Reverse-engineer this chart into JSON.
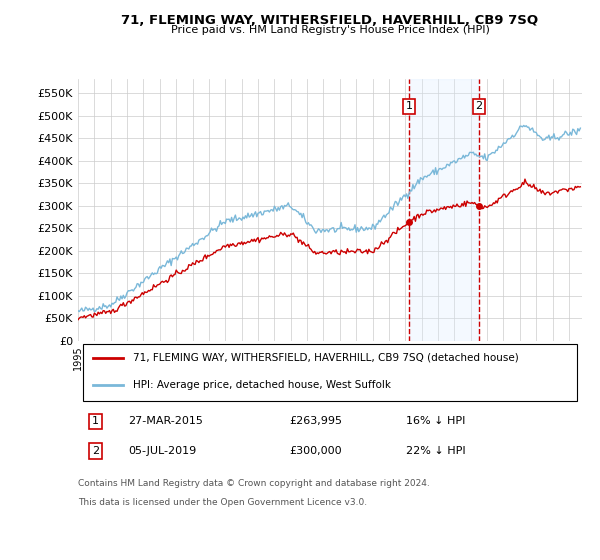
{
  "title": "71, FLEMING WAY, WITHERSFIELD, HAVERHILL, CB9 7SQ",
  "subtitle": "Price paid vs. HM Land Registry's House Price Index (HPI)",
  "ylim": [
    0,
    580000
  ],
  "yticks": [
    0,
    50000,
    100000,
    150000,
    200000,
    250000,
    300000,
    350000,
    400000,
    450000,
    500000,
    550000
  ],
  "transaction1": {
    "date": "27-MAR-2015",
    "price": 263995,
    "label": "1",
    "pct": "16% ↓ HPI",
    "year": 2015.23
  },
  "transaction2": {
    "date": "05-JUL-2019",
    "price": 300000,
    "label": "2",
    "pct": "22% ↓ HPI",
    "year": 2019.51
  },
  "legend_property": "71, FLEMING WAY, WITHERSFIELD, HAVERHILL, CB9 7SQ (detached house)",
  "legend_hpi": "HPI: Average price, detached house, West Suffolk",
  "footer1": "Contains HM Land Registry data © Crown copyright and database right 2024.",
  "footer2": "This data is licensed under the Open Government Licence v3.0.",
  "hpi_color": "#7ab8d9",
  "property_color": "#cc0000",
  "vline_color": "#cc0000",
  "shade_color": "#ddeeff",
  "background_color": "#ffffff",
  "grid_color": "#cccccc",
  "xlim_left": 1995,
  "xlim_right": 2025.8
}
